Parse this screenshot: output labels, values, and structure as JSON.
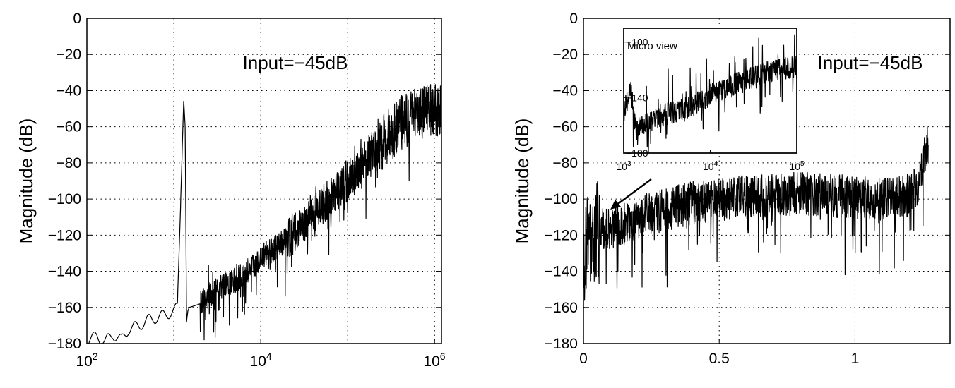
{
  "chart_data": [
    {
      "type": "line",
      "ylabel": "Magnitude (dB)",
      "xlabel": "",
      "xscale": "log",
      "xlim": [
        100,
        1200000
      ],
      "ylim": [
        -180,
        0
      ],
      "x_ticks": [
        {
          "value": 100,
          "base": "10",
          "exp": "2"
        },
        {
          "value": 10000,
          "base": "10",
          "exp": "4"
        },
        {
          "value": 1000000,
          "base": "10",
          "exp": "6"
        }
      ],
      "y_ticks": [
        0,
        -20,
        -40,
        -60,
        -80,
        -100,
        -120,
        -140,
        -160,
        -180
      ],
      "grid": true,
      "annotation": "Input=−45dB",
      "series": [
        {
          "x": [
            100,
            130,
            160,
            200,
            250,
            300,
            400,
            500,
            600,
            700,
            800,
            900,
            1000,
            1100,
            1200,
            1300,
            1350,
            1400,
            1450,
            1500,
            2000,
            3000,
            5000,
            10000,
            20000,
            40000,
            60000,
            100000,
            200000,
            400000,
            700000,
            1000000,
            1200000
          ],
          "y": [
            -178,
            -176,
            -179,
            -175,
            -178,
            -172,
            -170,
            -167,
            -166,
            -165,
            -164,
            -163,
            -162,
            -160,
            -100,
            -45,
            -60,
            -168,
            -162,
            -160,
            -158,
            -150,
            -145,
            -132,
            -122,
            -108,
            -100,
            -88,
            -72,
            -58,
            -52,
            -50,
            -52
          ]
        }
      ]
    },
    {
      "type": "line",
      "ylabel": "Magnitude (dB)",
      "xlabel": "",
      "xlim": [
        0,
        1.35
      ],
      "ylim": [
        -180,
        0
      ],
      "x_ticks": [
        "0",
        "0.5",
        "1"
      ],
      "x_tick_values": [
        0,
        0.5,
        1
      ],
      "y_ticks": [
        0,
        -20,
        -40,
        -60,
        -80,
        -100,
        -120,
        -140,
        -160,
        -180
      ],
      "grid": true,
      "annotation": "Input=−45dB",
      "series": [
        {
          "x": [
            0,
            0.01,
            0.02,
            0.03,
            0.05,
            0.1,
            0.2,
            0.3,
            0.4,
            0.5,
            0.6,
            0.7,
            0.8,
            0.9,
            1.0,
            1.1,
            1.2,
            1.24,
            1.26,
            1.27
          ],
          "y": [
            -130,
            -128,
            -112,
            -125,
            -118,
            -116,
            -110,
            -106,
            -102,
            -100,
            -99,
            -98,
            -97,
            -98,
            -99,
            -100,
            -98,
            -90,
            -72,
            -68
          ]
        }
      ],
      "inset": {
        "label": "Micro view",
        "xscale": "log",
        "xlim": [
          1000,
          100000
        ],
        "ylim": [
          -180,
          -90
        ],
        "x_ticks": [
          {
            "value": 1000,
            "base": "10",
            "exp": "3"
          },
          {
            "value": 10000,
            "base": "10",
            "exp": "4"
          },
          {
            "value": 100000,
            "base": "10",
            "exp": "5"
          }
        ],
        "y_ticks": [
          -100,
          -140,
          -180
        ],
        "series": [
          {
            "x": [
              1000,
              1200,
              1400,
              1600,
              2000,
              3000,
              5000,
              8000,
              10000,
              20000,
              40000,
              60000,
              100000
            ],
            "y": [
              -150,
              -135,
              -165,
              -160,
              -158,
              -152,
              -148,
              -142,
              -138,
              -130,
              -122,
              -120,
              -118
            ]
          }
        ]
      }
    }
  ]
}
